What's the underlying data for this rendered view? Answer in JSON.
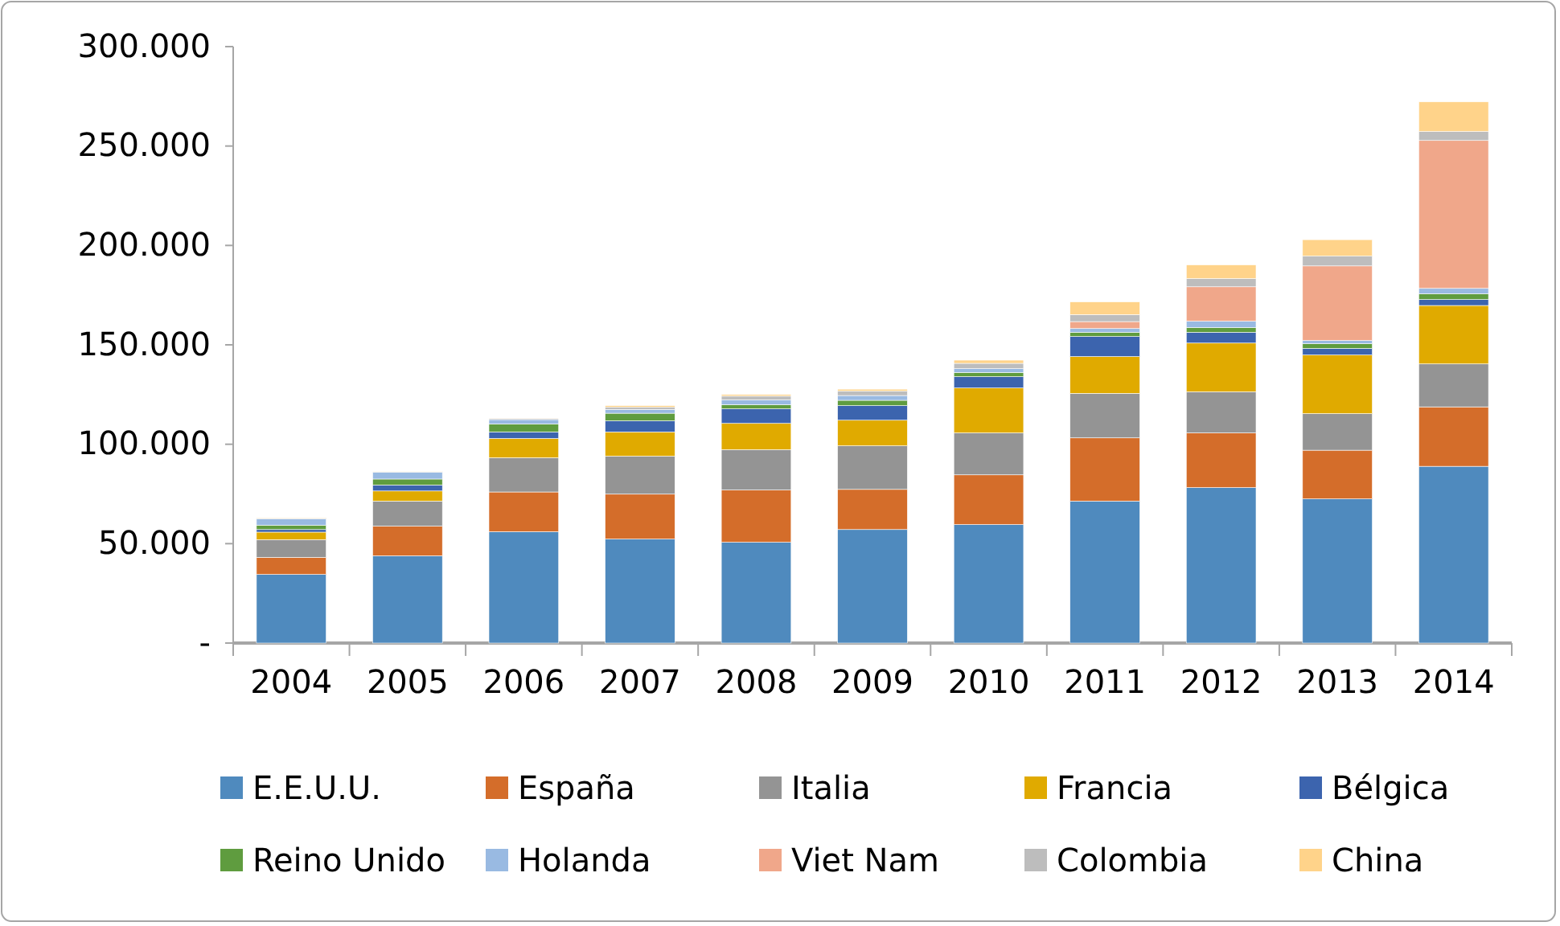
{
  "chart_data": {
    "type": "bar",
    "stacked": true,
    "legend": "bottom",
    "grid": false,
    "categories": [
      "2004",
      "2005",
      "2006",
      "2007",
      "2008",
      "2009",
      "2010",
      "2011",
      "2012",
      "2013",
      "2014"
    ],
    "ylim": [
      0,
      300000
    ],
    "yticks": [
      {
        "value": 0,
        "label": "-"
      },
      {
        "value": 50000,
        "label": "50.000"
      },
      {
        "value": 100000,
        "label": "100.000"
      },
      {
        "value": 150000,
        "label": "150.000"
      },
      {
        "value": 200000,
        "label": "200.000"
      },
      {
        "value": 250000,
        "label": "250.000"
      },
      {
        "value": 300000,
        "label": "300.000"
      }
    ],
    "series": [
      {
        "name": "E.E.U.U.",
        "color": "#4f8abe",
        "values": [
          34500,
          43900,
          56000,
          52300,
          50700,
          57100,
          59600,
          71400,
          78200,
          72500,
          88900
        ]
      },
      {
        "name": "España",
        "color": "#d46d2a",
        "values": [
          8600,
          14900,
          20000,
          22600,
          26300,
          20200,
          25000,
          31800,
          27500,
          24500,
          29900
        ]
      },
      {
        "name": "Italia",
        "color": "#949494",
        "values": [
          8900,
          12600,
          17200,
          19100,
          20300,
          21900,
          21100,
          22400,
          20700,
          18400,
          21600
        ]
      },
      {
        "name": "Francia",
        "color": "#e0aa00",
        "values": [
          3800,
          5100,
          9700,
          12200,
          13200,
          12900,
          22600,
          18500,
          24500,
          29500,
          29400
        ]
      },
      {
        "name": "Bélgica",
        "color": "#3c64ae",
        "values": [
          1300,
          3000,
          3300,
          5600,
          7300,
          7300,
          5700,
          10100,
          5400,
          3300,
          3000
        ]
      },
      {
        "name": "Reino Unido",
        "color": "#5f9c3f",
        "values": [
          2200,
          3000,
          4000,
          3800,
          2100,
          2700,
          2100,
          2100,
          2400,
          2400,
          2900
        ]
      },
      {
        "name": "Holanda",
        "color": "#99bae2",
        "values": [
          3200,
          3400,
          2200,
          1900,
          2400,
          2400,
          1900,
          1900,
          3200,
          1600,
          2700
        ]
      },
      {
        "name": "Viet Nam",
        "color": "#f0a78a",
        "values": [
          0,
          0,
          0,
          0,
          0,
          0,
          0,
          3500,
          17300,
          37500,
          74400
        ]
      },
      {
        "name": "Colombia",
        "color": "#bdbdbd",
        "values": [
          300,
          300,
          500,
          1100,
          1900,
          2200,
          2700,
          3500,
          4100,
          4900,
          4500
        ]
      },
      {
        "name": "China",
        "color": "#ffd38a",
        "values": [
          200,
          300,
          300,
          800,
          800,
          1000,
          1600,
          6400,
          6900,
          8300,
          14900
        ]
      }
    ]
  }
}
